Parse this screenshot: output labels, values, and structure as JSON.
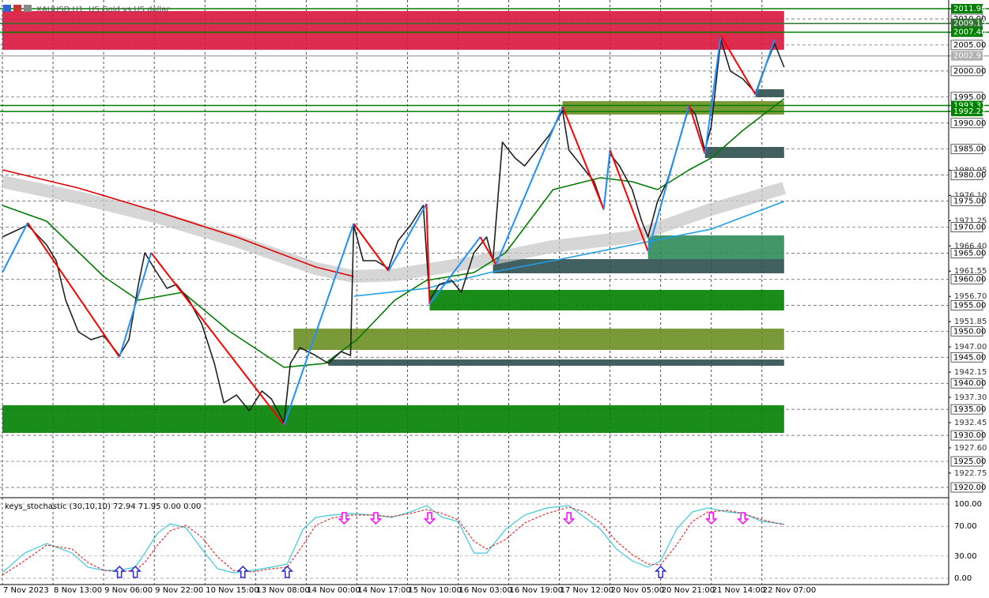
{
  "title": "XAUUSD,H1: US Gold vs US dollar",
  "chart_data": [
    {
      "type": "line",
      "xlim": [
        0,
        299
      ],
      "ylim": [
        1918.33,
        2013.64
      ],
      "xticks": [
        {
          "value": 0,
          "label": "7 Nov 2023"
        },
        {
          "value": 16,
          "label": "8 Nov 13:00"
        },
        {
          "value": 32,
          "label": "9 Nov 06:00"
        },
        {
          "value": 48,
          "label": "9 Nov 22:00"
        },
        {
          "value": 64,
          "label": "10 Nov 15:00"
        },
        {
          "value": 80,
          "label": "13 Nov 08:00"
        },
        {
          "value": 96,
          "label": "14 Nov 00:00"
        },
        {
          "value": 112,
          "label": "14 Nov 17:00"
        },
        {
          "value": 128,
          "label": "15 Nov 10:00"
        },
        {
          "value": 144,
          "label": "16 Nov 03:00"
        },
        {
          "value": 160,
          "label": "16 Nov 19:00"
        },
        {
          "value": 176,
          "label": "17 Nov 12:00"
        },
        {
          "value": 192,
          "label": "20 Nov 05:00"
        },
        {
          "value": 208,
          "label": "20 Nov 21:00"
        },
        {
          "value": 224,
          "label": "21 Nov 14:00"
        },
        {
          "value": 240,
          "label": "22 Nov 07:00"
        }
      ],
      "yticks": [
        {
          "value": 2010,
          "label": "2010.00"
        },
        {
          "value": 2005,
          "label": "2005.00"
        },
        {
          "value": 2000,
          "label": "2000.00"
        },
        {
          "value": 1995,
          "label": "1995.00"
        },
        {
          "value": 1990,
          "label": "1990.00"
        },
        {
          "value": 1985,
          "label": "1985.00"
        },
        {
          "value": 1980,
          "label": "1980.00"
        },
        {
          "value": 1975,
          "label": "1975.00"
        },
        {
          "value": 1970,
          "label": "1970.00"
        },
        {
          "value": 1965,
          "label": "1965.00"
        },
        {
          "value": 1960,
          "label": "1960.00"
        },
        {
          "value": 1955,
          "label": "1955.00"
        },
        {
          "value": 1950,
          "label": "1950.00"
        },
        {
          "value": 1945,
          "label": "1945.00"
        },
        {
          "value": 1940,
          "label": "1940.00"
        },
        {
          "value": 1935,
          "label": "1935.00"
        },
        {
          "value": 1930,
          "label": "1930.00"
        },
        {
          "value": 1925,
          "label": "1925.00"
        },
        {
          "value": 1920,
          "label": "1920.00"
        }
      ],
      "yticks_minor": [
        1980.95,
        {
          "value": 1976.1,
          "label": "1976.10"
        },
        1971.25,
        {
          "value": 1966.4,
          "label": "1966.40"
        },
        1961.55,
        {
          "value": 1956.7,
          "label": "1956.70"
        },
        1951.85,
        {
          "value": 1947,
          "label": "1947.00"
        },
        1942.15,
        {
          "value": 1937.3,
          "label": "1937.30"
        },
        1932.45,
        {
          "value": 1927.6,
          "label": "1927.60"
        },
        1922.75
      ],
      "grid": true,
      "levels": [
        {
          "value": 2011.98,
          "color": "#008000"
        },
        {
          "value": 2009.15,
          "color": "#2f6f2f"
        },
        {
          "value": 2007.46,
          "color": "#008000"
        },
        {
          "value": 2002.91,
          "color": "#b0b0b0"
        },
        {
          "value": 1993.37,
          "color": "#008000"
        },
        {
          "value": 1992.22,
          "color": "#008000"
        }
      ],
      "zones": [
        {
          "from": 0,
          "to": 247,
          "top": 2011.52,
          "bottom": 2004.08,
          "color": "#d8163d"
        },
        {
          "from": 177,
          "to": 247,
          "top": 1994.21,
          "bottom": 1991.63,
          "color": "#6b8e23"
        },
        {
          "from": 238,
          "to": 247,
          "top": 1996.49,
          "bottom": 1994.97,
          "color": "#2f4f4f"
        },
        {
          "from": 222,
          "to": 247,
          "top": 1985.41,
          "bottom": 1983.29,
          "color": "#2f4f4f"
        },
        {
          "from": 204,
          "to": 247,
          "top": 1968.41,
          "bottom": 1963.86,
          "color": "#2e8b57"
        },
        {
          "from": 155,
          "to": 247,
          "top": 1963.86,
          "bottom": 1961.13,
          "color": "#2f4f4f"
        },
        {
          "from": 135,
          "to": 247,
          "top": 1957.94,
          "bottom": 1953.99,
          "color": "#008000"
        },
        {
          "from": 92,
          "to": 247,
          "top": 1950.51,
          "bottom": 1946.41,
          "color": "#6b8e23"
        },
        {
          "from": 103,
          "to": 247,
          "top": 1944.58,
          "bottom": 1943.37,
          "color": "#2f4f4f"
        },
        {
          "from": 0,
          "to": 247,
          "top": 1935.78,
          "bottom": 1930.47,
          "color": "#008000"
        }
      ],
      "series": [
        {
          "color": "#c8c8c8",
          "style": "band",
          "x": [
            0,
            24,
            49,
            74,
            99,
            111,
            124,
            149,
            174,
            199,
            224,
            247
          ],
          "values": [
            1978.73,
            1975.7,
            1971.9,
            1967.35,
            1962.04,
            1960.52,
            1960.82,
            1963.25,
            1966.29,
            1968.11,
            1973.42,
            1977.52
          ]
        },
        {
          "color": "#e00000",
          "x": [
            0,
            24,
            49,
            74,
            99,
            111
          ],
          "values": [
            1981.01,
            1977.52,
            1972.97,
            1968.11,
            1962.34,
            1960.52
          ]
        },
        {
          "color": "#007a00",
          "x": [
            0,
            14,
            32,
            43,
            57,
            72,
            89,
            102,
            112,
            124,
            134,
            149,
            159,
            174,
            189,
            199,
            207,
            217,
            224,
            234,
            247
          ],
          "values": [
            1974.18,
            1971.15,
            1960.52,
            1955.97,
            1957.49,
            1949.9,
            1943.07,
            1943.83,
            1948.38,
            1955.97,
            1959.76,
            1961.28,
            1965.07,
            1977.22,
            1979.49,
            1978.73,
            1977.22,
            1981.01,
            1983.29,
            1988.6,
            1994.67
          ]
        },
        {
          "color": "#1ea0e6",
          "x": [
            111,
            134,
            154,
            174,
            199,
            224,
            247
          ],
          "values": [
            1956.73,
            1958.24,
            1961.28,
            1963.56,
            1966.59,
            1969.63,
            1974.94
          ]
        },
        {
          "color": "#202020",
          "x": [
            0,
            8,
            14,
            17,
            20,
            24,
            28,
            32,
            37,
            40,
            43,
            45,
            48,
            52,
            55,
            59,
            63,
            67,
            70,
            74,
            78,
            82,
            85,
            89,
            91,
            94,
            99,
            103,
            107,
            110,
            111,
            114,
            118,
            122,
            125,
            129,
            133,
            135,
            138,
            142,
            145,
            149,
            153,
            155,
            158,
            162,
            165,
            169,
            173,
            177,
            179,
            183,
            187,
            190,
            192,
            195,
            199,
            202,
            204,
            207,
            210,
            213,
            217,
            219,
            222,
            224,
            227,
            230,
            234,
            238,
            240,
            244,
            247
          ],
          "values": [
            1968.11,
            1970.39,
            1966.59,
            1963.56,
            1955.97,
            1949.9,
            1948.38,
            1949.14,
            1945.34,
            1948.38,
            1959,
            1965.07,
            1962.04,
            1958.24,
            1959,
            1955.97,
            1951.42,
            1943.83,
            1936.24,
            1937.76,
            1934.72,
            1938.51,
            1937,
            1932.44,
            1943.83,
            1946.86,
            1945.34,
            1943.83,
            1946.1,
            1945.34,
            1970.39,
            1963.56,
            1963.56,
            1962.04,
            1967.35,
            1970.39,
            1974.18,
            1955.97,
            1959,
            1959.76,
            1957.49,
            1965.07,
            1968.11,
            1963.56,
            1986.32,
            1983.29,
            1981.77,
            1984.8,
            1987.84,
            1992.39,
            1984.8,
            1981.77,
            1978.73,
            1973.42,
            1984.05,
            1981.77,
            1977.22,
            1971.15,
            1968.11,
            1974.94,
            1978.73,
            1984.8,
            1993.15,
            1991.63,
            1984.8,
            1989.36,
            2006.05,
            1999.98,
            1998.46,
            1995.73,
            1999.22,
            2005.29,
            2000.74
          ]
        }
      ],
      "zigzag": {
        "up_color": "#1e90ff",
        "down_color": "#ff0000",
        "x": [
          0,
          8,
          37,
          47,
          89,
          111,
          122,
          134,
          135,
          151,
          156,
          177,
          190,
          192,
          204,
          217,
          222,
          227,
          238,
          244
        ],
        "values": [
          1961.28,
          1970.84,
          1945.04,
          1965.07,
          1931.99,
          1970.69,
          1961.58,
          1974.48,
          1955.21,
          1968.11,
          1962.8,
          1993.15,
          1973.42,
          1984.8,
          1965.38,
          1993.45,
          1984.05,
          2006.81,
          1995.43,
          2006.05
        ]
      }
    },
    {
      "type": "line",
      "title": "keys_stochastic (30,10,10) 72.94 71.95 0.00 0.00",
      "xlim": [
        0,
        299
      ],
      "ylim": [
        -8.5,
        106.4
      ],
      "yticks": [
        {
          "value": 100,
          "label": "100.00"
        },
        {
          "value": 70,
          "label": "70.00"
        },
        {
          "value": 30,
          "label": "30.00"
        },
        {
          "value": 0,
          "label": "0.00"
        }
      ],
      "x": [
        0,
        7,
        14,
        22,
        27,
        32,
        37,
        42,
        45,
        49,
        53,
        58,
        63,
        68,
        73,
        79,
        85,
        90,
        95,
        99,
        104,
        110,
        117,
        123,
        129,
        134,
        139,
        144,
        149,
        153,
        159,
        165,
        172,
        179,
        184,
        189,
        194,
        199,
        204,
        208,
        213,
        218,
        223,
        229,
        234,
        240,
        247
      ],
      "series": [
        {
          "color": "#3cc8dc",
          "values": [
            7.4,
            34,
            46.8,
            34,
            14.9,
            10.6,
            10.6,
            14.9,
            34,
            60.6,
            73.4,
            68.1,
            39.4,
            12.8,
            7.4,
            10.6,
            14.9,
            19.1,
            66,
            81.9,
            85.1,
            87.2,
            85.1,
            81.9,
            89.4,
            97.9,
            81.9,
            76.6,
            34,
            34,
            66,
            85.1,
            94.7,
            97.9,
            81.9,
            66,
            39.4,
            23.4,
            14.9,
            23.4,
            66,
            89.4,
            94.7,
            89.4,
            87.2,
            76.6,
            72.94
          ]
        },
        {
          "color": "#e03030",
          "style": "dashed",
          "values": [
            4.3,
            23.4,
            44.7,
            39.4,
            21.3,
            10.6,
            8.5,
            10.6,
            21.3,
            44.7,
            63.8,
            71.3,
            55.3,
            28.7,
            10.6,
            8.5,
            12.8,
            14.9,
            44.7,
            71.3,
            80.9,
            85.1,
            85.1,
            83,
            87.2,
            92.6,
            87.2,
            78.7,
            50,
            39.4,
            52.1,
            74.5,
            87.2,
            95.7,
            89.4,
            74.5,
            50,
            31.9,
            19.1,
            18.1,
            44.7,
            76.6,
            89.4,
            91.5,
            87.2,
            78.7,
            71.95
          ]
        }
      ],
      "signals": [
        {
          "direction": "up",
          "color": "#2a2ad0",
          "x": [
            37,
            42,
            76,
            90,
            208
          ],
          "values": [
            7.4,
            7.4,
            7.4,
            7.4,
            7.4
          ]
        },
        {
          "direction": "down",
          "color": "#ff00ff",
          "x": [
            108,
            118,
            135,
            179,
            224,
            234
          ],
          "values": [
            81.9,
            81.9,
            81.9,
            81.9,
            81.9,
            81.9
          ]
        }
      ]
    }
  ]
}
